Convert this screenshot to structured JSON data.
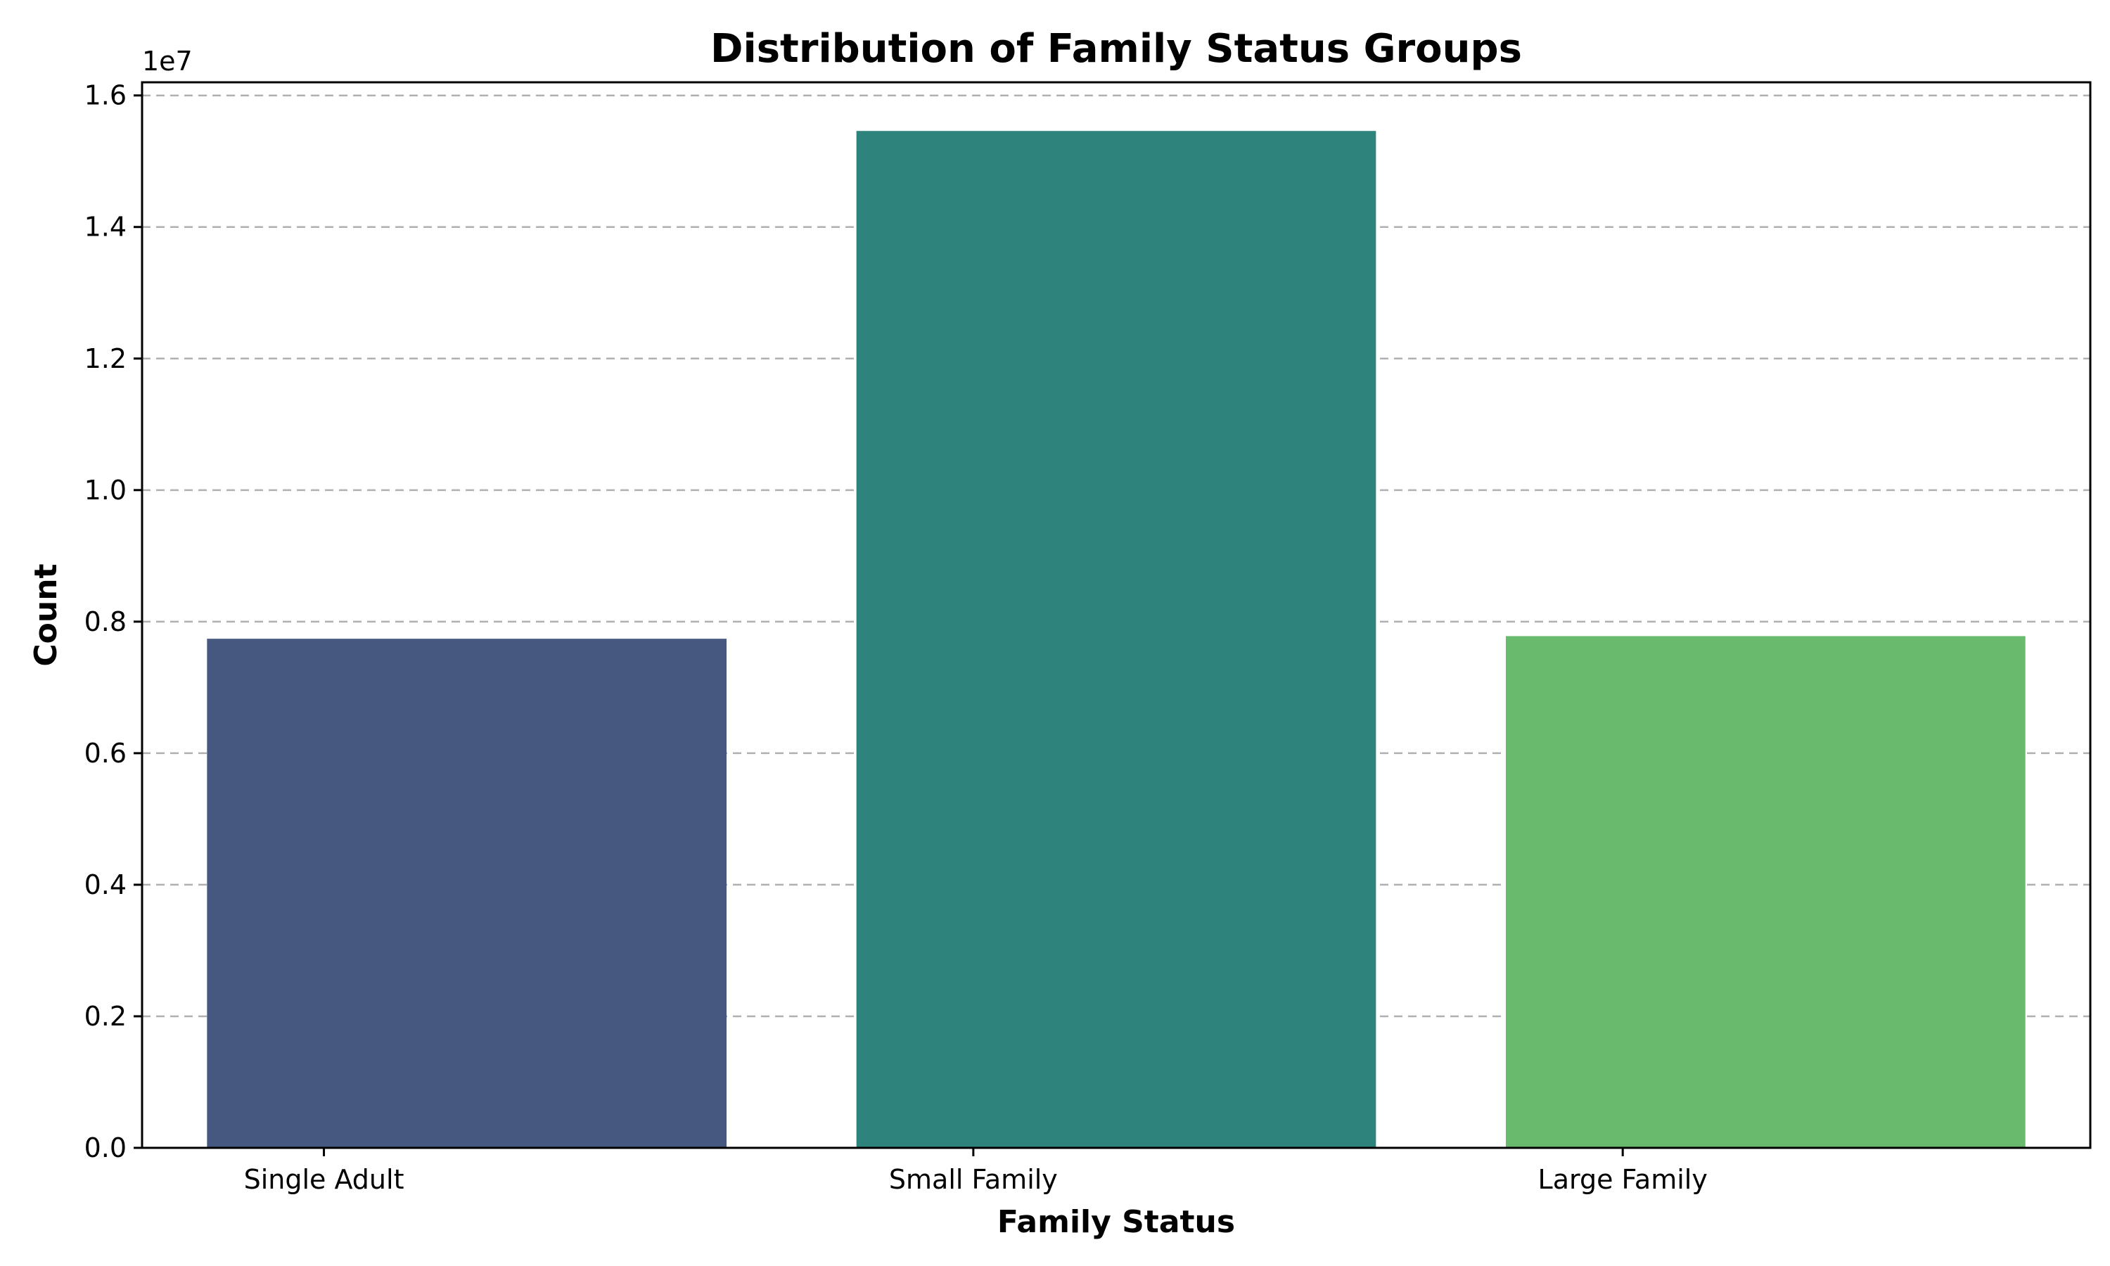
{
  "chart_data": {
    "type": "bar",
    "title": "Distribution of Family Status Groups",
    "xlabel": "Family Status",
    "ylabel": "Count",
    "categories": [
      "Single Adult",
      "Small Family",
      "Large Family"
    ],
    "values": [
      7740000,
      15460000,
      7780000
    ],
    "colors": [
      "#46587f",
      "#2e837c",
      "#6aba6d"
    ],
    "ylim": [
      0,
      16200000
    ],
    "yticks": [
      0,
      2000000,
      4000000,
      6000000,
      8000000,
      10000000,
      12000000,
      14000000,
      16000000
    ],
    "ytick_labels": [
      "0.0",
      "0.2",
      "0.4",
      "0.6",
      "0.8",
      "1.0",
      "1.2",
      "1.4",
      "1.6"
    ],
    "offset_label": "1e7",
    "grid": "y-dashed",
    "legend": "none"
  }
}
